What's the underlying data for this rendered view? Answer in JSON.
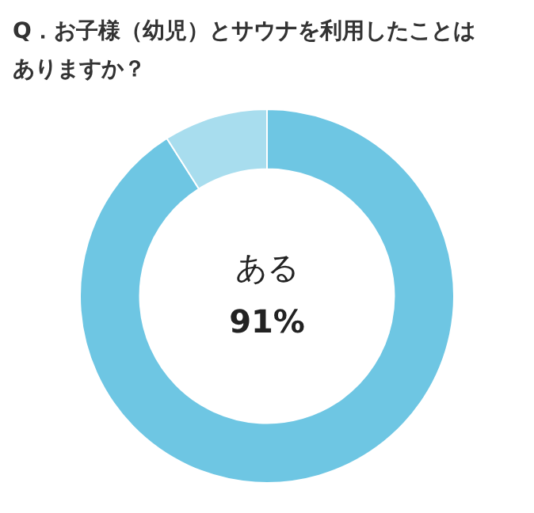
{
  "chart_data": {
    "type": "donut",
    "title": "Q．お子様（幼児）とサウナを利用したことはありますか？",
    "categories": [
      "ある",
      null
    ],
    "values": [
      91,
      9
    ],
    "colors": [
      "#6ec6e3",
      "#a8ddee"
    ],
    "value_labels": [
      "91%",
      null
    ],
    "legend": false
  }
}
